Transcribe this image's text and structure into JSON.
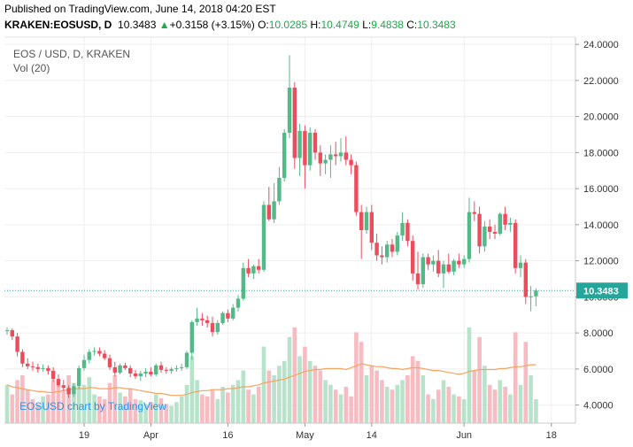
{
  "header": {
    "published": "Published on TradingView.com, June 14, 2018 04:20 EST",
    "symbol": "KRAKEN:EOSUSD, D",
    "last": "10.3483",
    "change_arrow": "▲",
    "change": "+0.3158 (+3.15%)",
    "o_label": "O:",
    "o_value": "10.0285",
    "h_label": "H:",
    "h_value": "10.4749",
    "l_label": "L:",
    "l_value": "9.4838",
    "c_label": "C:",
    "c_value": "10.3483"
  },
  "chart_data": {
    "type": "candlestick",
    "legend": [
      "EOS / USD, D, KRAKEN",
      "Vol (20)"
    ],
    "watermark": "EOSUSD chart by TradingView",
    "current_price": 10.3483,
    "current_price_label": "10.3483",
    "ylim": [
      3.0,
      24.4
    ],
    "y_ticks": [
      4,
      6,
      8,
      10,
      12,
      14,
      16,
      18,
      20,
      22,
      24
    ],
    "y_tick_labels": [
      "4.0000",
      "6.0000",
      "8.0000",
      "10.0000",
      "12.0000",
      "14.0000",
      "16.0000",
      "18.0000",
      "20.0000",
      "22.0000",
      "24.0000"
    ],
    "x_ticks": [
      {
        "label": "19",
        "day": 15
      },
      {
        "label": "Apr",
        "day": 28
      },
      {
        "label": "16",
        "day": 43
      },
      {
        "label": "May",
        "day": 58
      },
      {
        "label": "14",
        "day": 71
      },
      {
        "label": "Jun",
        "day": 89
      },
      {
        "label": "18",
        "day": 106
      }
    ],
    "colors": {
      "up": "#53b987",
      "down": "#eb4d5c",
      "vol_up": "#b7e3cb",
      "vol_down": "#f6bcc2",
      "ma": "#f4a460",
      "grid": "#eeeeee",
      "price_line": "#26a69a"
    },
    "vol_max": 100,
    "candles": [
      {
        "o": 8.1,
        "h": 8.3,
        "l": 7.9,
        "c": 8.15,
        "v": 40
      },
      {
        "o": 8.15,
        "h": 8.25,
        "l": 7.6,
        "c": 7.8,
        "v": 30
      },
      {
        "o": 7.8,
        "h": 8.0,
        "l": 6.7,
        "c": 6.95,
        "v": 45
      },
      {
        "o": 6.95,
        "h": 7.1,
        "l": 6.1,
        "c": 6.3,
        "v": 50
      },
      {
        "o": 6.3,
        "h": 6.6,
        "l": 6.0,
        "c": 6.15,
        "v": 35
      },
      {
        "o": 6.15,
        "h": 6.4,
        "l": 5.9,
        "c": 6.1,
        "v": 25
      },
      {
        "o": 6.1,
        "h": 6.3,
        "l": 5.8,
        "c": 6.0,
        "v": 20
      },
      {
        "o": 6.0,
        "h": 6.25,
        "l": 5.85,
        "c": 6.05,
        "v": 28
      },
      {
        "o": 6.05,
        "h": 6.2,
        "l": 5.7,
        "c": 5.9,
        "v": 30
      },
      {
        "o": 5.9,
        "h": 6.1,
        "l": 5.3,
        "c": 5.45,
        "v": 45
      },
      {
        "o": 5.45,
        "h": 5.7,
        "l": 5.0,
        "c": 5.1,
        "v": 40
      },
      {
        "o": 5.1,
        "h": 5.4,
        "l": 4.8,
        "c": 4.95,
        "v": 35
      },
      {
        "o": 4.95,
        "h": 5.1,
        "l": 4.4,
        "c": 4.6,
        "v": 50
      },
      {
        "o": 4.6,
        "h": 5.2,
        "l": 4.45,
        "c": 5.05,
        "v": 42
      },
      {
        "o": 5.05,
        "h": 6.2,
        "l": 4.9,
        "c": 6.05,
        "v": 38
      },
      {
        "o": 6.05,
        "h": 6.8,
        "l": 5.9,
        "c": 6.5,
        "v": 40
      },
      {
        "o": 6.5,
        "h": 7.1,
        "l": 6.3,
        "c": 6.95,
        "v": 48
      },
      {
        "o": 6.95,
        "h": 7.2,
        "l": 6.75,
        "c": 7.0,
        "v": 30
      },
      {
        "o": 7.0,
        "h": 7.2,
        "l": 6.7,
        "c": 6.85,
        "v": 28
      },
      {
        "o": 6.85,
        "h": 7.05,
        "l": 6.5,
        "c": 6.6,
        "v": 25
      },
      {
        "o": 6.6,
        "h": 6.8,
        "l": 5.95,
        "c": 6.1,
        "v": 42
      },
      {
        "o": 6.1,
        "h": 6.4,
        "l": 5.6,
        "c": 5.8,
        "v": 50
      },
      {
        "o": 5.8,
        "h": 6.3,
        "l": 5.7,
        "c": 6.2,
        "v": 32
      },
      {
        "o": 6.2,
        "h": 6.35,
        "l": 5.95,
        "c": 6.05,
        "v": 28
      },
      {
        "o": 6.05,
        "h": 6.2,
        "l": 5.55,
        "c": 5.75,
        "v": 36
      },
      {
        "o": 5.75,
        "h": 5.95,
        "l": 5.45,
        "c": 5.6,
        "v": 25
      },
      {
        "o": 5.6,
        "h": 5.9,
        "l": 5.35,
        "c": 5.75,
        "v": 24
      },
      {
        "o": 5.75,
        "h": 6.05,
        "l": 5.55,
        "c": 5.85,
        "v": 20
      },
      {
        "o": 5.85,
        "h": 6.1,
        "l": 5.6,
        "c": 5.7,
        "v": 22
      },
      {
        "o": 5.7,
        "h": 6.3,
        "l": 5.6,
        "c": 6.2,
        "v": 30
      },
      {
        "o": 6.2,
        "h": 6.4,
        "l": 5.8,
        "c": 5.95,
        "v": 26
      },
      {
        "o": 5.95,
        "h": 6.1,
        "l": 5.75,
        "c": 5.9,
        "v": 20
      },
      {
        "o": 5.9,
        "h": 6.1,
        "l": 5.75,
        "c": 6.0,
        "v": 18
      },
      {
        "o": 6.0,
        "h": 6.2,
        "l": 5.85,
        "c": 6.05,
        "v": 22
      },
      {
        "o": 6.05,
        "h": 6.3,
        "l": 5.9,
        "c": 6.1,
        "v": 28
      },
      {
        "o": 6.1,
        "h": 7.0,
        "l": 6.0,
        "c": 6.9,
        "v": 40
      },
      {
        "o": 6.9,
        "h": 8.7,
        "l": 6.5,
        "c": 8.6,
        "v": 70
      },
      {
        "o": 8.6,
        "h": 9.4,
        "l": 8.4,
        "c": 8.8,
        "v": 45
      },
      {
        "o": 8.8,
        "h": 9.1,
        "l": 8.4,
        "c": 8.7,
        "v": 30
      },
      {
        "o": 8.7,
        "h": 8.95,
        "l": 8.3,
        "c": 8.55,
        "v": 28
      },
      {
        "o": 8.55,
        "h": 8.9,
        "l": 7.8,
        "c": 8.05,
        "v": 35
      },
      {
        "o": 8.05,
        "h": 8.7,
        "l": 7.9,
        "c": 8.55,
        "v": 25
      },
      {
        "o": 8.55,
        "h": 9.2,
        "l": 8.45,
        "c": 9.1,
        "v": 38
      },
      {
        "o": 9.1,
        "h": 9.3,
        "l": 8.6,
        "c": 8.8,
        "v": 32
      },
      {
        "o": 8.8,
        "h": 9.6,
        "l": 8.7,
        "c": 9.4,
        "v": 40
      },
      {
        "o": 9.4,
        "h": 10.1,
        "l": 9.2,
        "c": 9.9,
        "v": 45
      },
      {
        "o": 9.9,
        "h": 11.9,
        "l": 9.8,
        "c": 11.6,
        "v": 55
      },
      {
        "o": 11.6,
        "h": 12.1,
        "l": 11.1,
        "c": 11.3,
        "v": 35
      },
      {
        "o": 11.3,
        "h": 11.8,
        "l": 11.0,
        "c": 11.7,
        "v": 30
      },
      {
        "o": 11.7,
        "h": 12.1,
        "l": 11.3,
        "c": 11.5,
        "v": 38
      },
      {
        "o": 11.5,
        "h": 15.3,
        "l": 11.4,
        "c": 15.1,
        "v": 80
      },
      {
        "o": 15.1,
        "h": 16.1,
        "l": 14.2,
        "c": 14.3,
        "v": 55
      },
      {
        "o": 14.3,
        "h": 16.3,
        "l": 14.1,
        "c": 15.3,
        "v": 50
      },
      {
        "o": 15.3,
        "h": 17.2,
        "l": 15.1,
        "c": 16.6,
        "v": 60
      },
      {
        "o": 16.6,
        "h": 19.3,
        "l": 16.4,
        "c": 19.1,
        "v": 65
      },
      {
        "o": 19.1,
        "h": 23.4,
        "l": 18.8,
        "c": 21.6,
        "v": 90
      },
      {
        "o": 21.6,
        "h": 21.9,
        "l": 17.1,
        "c": 17.7,
        "v": 100
      },
      {
        "o": 17.7,
        "h": 19.6,
        "l": 16.7,
        "c": 19.2,
        "v": 70
      },
      {
        "o": 19.2,
        "h": 19.5,
        "l": 16.0,
        "c": 17.3,
        "v": 80
      },
      {
        "o": 17.3,
        "h": 19.4,
        "l": 17.0,
        "c": 19.1,
        "v": 65
      },
      {
        "o": 19.1,
        "h": 19.3,
        "l": 17.6,
        "c": 18.0,
        "v": 60
      },
      {
        "o": 18.0,
        "h": 18.4,
        "l": 16.7,
        "c": 17.4,
        "v": 55
      },
      {
        "o": 17.4,
        "h": 17.9,
        "l": 16.8,
        "c": 17.6,
        "v": 45
      },
      {
        "o": 17.6,
        "h": 18.4,
        "l": 16.6,
        "c": 17.9,
        "v": 40
      },
      {
        "o": 17.9,
        "h": 18.6,
        "l": 17.3,
        "c": 17.8,
        "v": 35
      },
      {
        "o": 17.8,
        "h": 18.8,
        "l": 17.5,
        "c": 18.0,
        "v": 30
      },
      {
        "o": 18.0,
        "h": 18.9,
        "l": 17.3,
        "c": 17.6,
        "v": 38
      },
      {
        "o": 17.6,
        "h": 17.9,
        "l": 16.8,
        "c": 17.3,
        "v": 28
      },
      {
        "o": 17.3,
        "h": 17.5,
        "l": 14.5,
        "c": 14.7,
        "v": 95
      },
      {
        "o": 14.7,
        "h": 15.1,
        "l": 12.1,
        "c": 13.7,
        "v": 85
      },
      {
        "o": 13.7,
        "h": 15.0,
        "l": 13.5,
        "c": 14.7,
        "v": 50
      },
      {
        "o": 14.7,
        "h": 15.1,
        "l": 12.6,
        "c": 13.0,
        "v": 60
      },
      {
        "o": 13.0,
        "h": 13.5,
        "l": 12.0,
        "c": 12.3,
        "v": 55
      },
      {
        "o": 12.3,
        "h": 12.8,
        "l": 11.8,
        "c": 12.2,
        "v": 45
      },
      {
        "o": 12.2,
        "h": 13.1,
        "l": 11.9,
        "c": 12.9,
        "v": 38
      },
      {
        "o": 12.9,
        "h": 13.2,
        "l": 12.2,
        "c": 12.5,
        "v": 35
      },
      {
        "o": 12.5,
        "h": 13.6,
        "l": 12.3,
        "c": 13.4,
        "v": 40
      },
      {
        "o": 13.4,
        "h": 14.7,
        "l": 13.1,
        "c": 14.1,
        "v": 45
      },
      {
        "o": 14.1,
        "h": 14.3,
        "l": 12.8,
        "c": 13.1,
        "v": 50
      },
      {
        "o": 13.1,
        "h": 13.4,
        "l": 10.9,
        "c": 11.3,
        "v": 70
      },
      {
        "o": 11.3,
        "h": 12.5,
        "l": 10.4,
        "c": 10.7,
        "v": 65
      },
      {
        "o": 10.7,
        "h": 12.4,
        "l": 10.5,
        "c": 12.2,
        "v": 50
      },
      {
        "o": 12.2,
        "h": 12.4,
        "l": 11.5,
        "c": 11.8,
        "v": 30
      },
      {
        "o": 11.8,
        "h": 12.3,
        "l": 11.4,
        "c": 12.0,
        "v": 25
      },
      {
        "o": 12.0,
        "h": 12.6,
        "l": 11.1,
        "c": 11.3,
        "v": 35
      },
      {
        "o": 11.3,
        "h": 12.0,
        "l": 10.5,
        "c": 11.8,
        "v": 45
      },
      {
        "o": 11.8,
        "h": 12.4,
        "l": 11.3,
        "c": 11.4,
        "v": 38
      },
      {
        "o": 11.4,
        "h": 12.1,
        "l": 11.2,
        "c": 12.0,
        "v": 30
      },
      {
        "o": 12.0,
        "h": 12.4,
        "l": 11.6,
        "c": 11.8,
        "v": 28
      },
      {
        "o": 11.8,
        "h": 12.3,
        "l": 11.6,
        "c": 12.1,
        "v": 25
      },
      {
        "o": 12.1,
        "h": 15.5,
        "l": 11.9,
        "c": 14.7,
        "v": 100
      },
      {
        "o": 14.7,
        "h": 15.3,
        "l": 14.2,
        "c": 14.6,
        "v": 55
      },
      {
        "o": 14.6,
        "h": 15.0,
        "l": 12.4,
        "c": 12.8,
        "v": 90
      },
      {
        "o": 12.8,
        "h": 14.2,
        "l": 12.5,
        "c": 13.9,
        "v": 60
      },
      {
        "o": 13.9,
        "h": 14.3,
        "l": 13.2,
        "c": 13.6,
        "v": 40
      },
      {
        "o": 13.6,
        "h": 14.0,
        "l": 13.2,
        "c": 13.5,
        "v": 35
      },
      {
        "o": 13.5,
        "h": 14.7,
        "l": 13.4,
        "c": 14.6,
        "v": 45
      },
      {
        "o": 14.6,
        "h": 15.0,
        "l": 13.7,
        "c": 14.0,
        "v": 38
      },
      {
        "o": 14.0,
        "h": 14.4,
        "l": 13.6,
        "c": 14.1,
        "v": 30
      },
      {
        "o": 14.1,
        "h": 14.3,
        "l": 11.3,
        "c": 11.6,
        "v": 95
      },
      {
        "o": 11.6,
        "h": 12.3,
        "l": 11.1,
        "c": 11.9,
        "v": 40
      },
      {
        "o": 11.9,
        "h": 12.1,
        "l": 9.6,
        "c": 10.0,
        "v": 85
      },
      {
        "o": 10.0,
        "h": 10.6,
        "l": 9.2,
        "c": 10.03,
        "v": 50
      },
      {
        "o": 10.03,
        "h": 10.47,
        "l": 9.48,
        "c": 10.35,
        "v": 25
      }
    ],
    "vol_ma": [
      40,
      38,
      37,
      36,
      35,
      34,
      33,
      33,
      32,
      32,
      33,
      34,
      35,
      36,
      36,
      36,
      37,
      37,
      36,
      36,
      36,
      37,
      37,
      36,
      36,
      35,
      34,
      33,
      32,
      31,
      31,
      30,
      29,
      29,
      29,
      30,
      32,
      33,
      34,
      34,
      35,
      35,
      35,
      36,
      36,
      37,
      38,
      38,
      39,
      40,
      42,
      43,
      44,
      45,
      46,
      48,
      50,
      52,
      54,
      55,
      56,
      56,
      57,
      57,
      57,
      57,
      56,
      58,
      60,
      62,
      61,
      60,
      59,
      59,
      58,
      57,
      57,
      56,
      57,
      58,
      58,
      57,
      56,
      55,
      55,
      54,
      53,
      52,
      51,
      52,
      54,
      55,
      56,
      56,
      56,
      56,
      57,
      57,
      58,
      59,
      59,
      60,
      61,
      61
    ]
  }
}
